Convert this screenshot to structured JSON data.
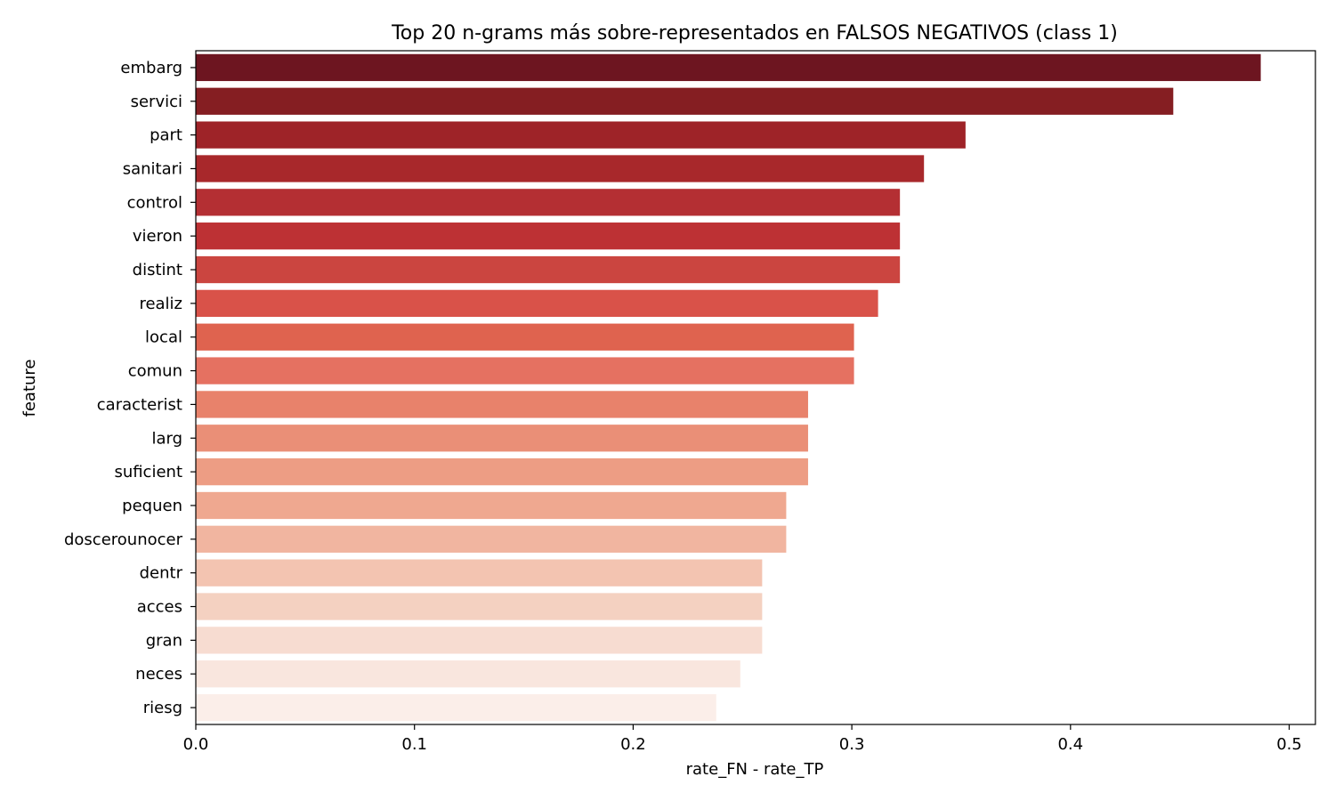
{
  "chart_data": {
    "type": "bar",
    "orientation": "horizontal",
    "title": "Top 20 n-grams más sobre-representados en FALSOS NEGATIVOS (class 1)",
    "xlabel": "rate_FN - rate_TP",
    "ylabel": "feature",
    "xlim": [
      0.0,
      0.512
    ],
    "xticks": [
      0.0,
      0.1,
      0.2,
      0.3,
      0.4,
      0.5
    ],
    "xtick_labels": [
      "0.0",
      "0.1",
      "0.2",
      "0.3",
      "0.4",
      "0.5"
    ],
    "grid": false,
    "colormap": "Reds (dark to light, top to bottom)",
    "categories": [
      "embarg",
      "servici",
      "part",
      "sanitari",
      "control",
      "vieron",
      "distint",
      "realiz",
      "local",
      "comun",
      "caracterist",
      "larg",
      "suficient",
      "pequen",
      "doscerounocer",
      "dentr",
      "acces",
      "gran",
      "neces",
      "riesg"
    ],
    "values": [
      0.487,
      0.447,
      0.352,
      0.333,
      0.322,
      0.322,
      0.322,
      0.312,
      0.301,
      0.301,
      0.28,
      0.28,
      0.28,
      0.27,
      0.27,
      0.259,
      0.259,
      0.259,
      0.249,
      0.238
    ],
    "colors": [
      "#6d1520",
      "#851e22",
      "#9e2328",
      "#a8282b",
      "#b42f33",
      "#bd3134",
      "#cb4540",
      "#d95249",
      "#df634f",
      "#e57161",
      "#e8826b",
      "#ea8f77",
      "#ed9d84",
      "#efa890",
      "#f1b5a0",
      "#f3c4b1",
      "#f4d1c1",
      "#f7dcd1",
      "#f9e6de",
      "#fbeee9"
    ]
  }
}
